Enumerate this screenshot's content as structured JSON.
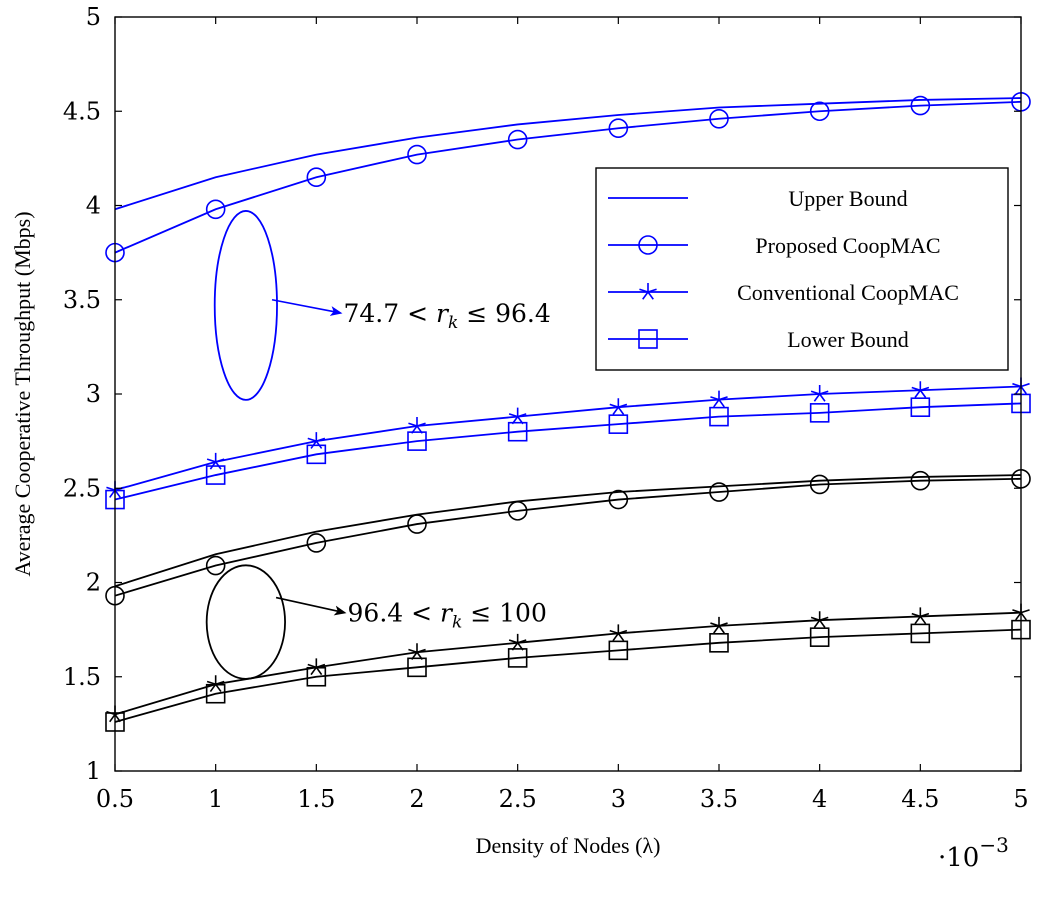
{
  "chart_data": {
    "type": "line",
    "xlabel": "Density of Nodes (λ)",
    "ylabel": "Average Cooperative Throughput (Mbps)",
    "x_multiplier_label": "·10",
    "x_multiplier_exponent": "−3",
    "xlim": [
      0.5,
      5
    ],
    "ylim": [
      1,
      5
    ],
    "x_ticks": [
      0.5,
      1,
      1.5,
      2,
      2.5,
      3,
      3.5,
      4,
      4.5,
      5
    ],
    "x_tick_labels": [
      "0.5",
      "1",
      "1.5",
      "2",
      "2.5",
      "3",
      "3.5",
      "4",
      "4.5",
      "5"
    ],
    "y_ticks": [
      1,
      1.5,
      2,
      2.5,
      3,
      3.5,
      4,
      4.5,
      5
    ],
    "y_tick_labels": [
      "1",
      "1.5",
      "2",
      "2.5",
      "3",
      "3.5",
      "4",
      "4.5",
      "5"
    ],
    "grid": false,
    "legend_position": "top-right",
    "legend": [
      {
        "label": "Upper Bound",
        "marker": "none"
      },
      {
        "label": "Proposed CoopMAC",
        "marker": "circle"
      },
      {
        "label": "Conventional CoopMAC",
        "marker": "star"
      },
      {
        "label": "Lower Bound",
        "marker": "square"
      }
    ],
    "x": [
      0.5,
      1,
      1.5,
      2,
      2.5,
      3,
      3.5,
      4,
      4.5,
      5
    ],
    "series": [
      {
        "group": "blue",
        "color": "#0000ff",
        "marker": "none",
        "values": [
          3.98,
          4.15,
          4.27,
          4.36,
          4.43,
          4.48,
          4.52,
          4.54,
          4.56,
          4.57
        ]
      },
      {
        "group": "blue",
        "color": "#0000ff",
        "marker": "circle",
        "values": [
          3.75,
          3.98,
          4.15,
          4.27,
          4.35,
          4.41,
          4.46,
          4.5,
          4.53,
          4.55
        ]
      },
      {
        "group": "blue",
        "color": "#0000ff",
        "marker": "star",
        "values": [
          2.49,
          2.64,
          2.75,
          2.83,
          2.88,
          2.93,
          2.97,
          3.0,
          3.02,
          3.04
        ]
      },
      {
        "group": "blue",
        "color": "#0000ff",
        "marker": "square",
        "values": [
          2.44,
          2.57,
          2.68,
          2.75,
          2.8,
          2.84,
          2.88,
          2.9,
          2.93,
          2.95
        ]
      },
      {
        "group": "black",
        "color": "#000000",
        "marker": "none",
        "values": [
          1.98,
          2.15,
          2.27,
          2.36,
          2.43,
          2.48,
          2.51,
          2.54,
          2.56,
          2.57
        ]
      },
      {
        "group": "black",
        "color": "#000000",
        "marker": "circle",
        "values": [
          1.93,
          2.09,
          2.21,
          2.31,
          2.38,
          2.44,
          2.48,
          2.52,
          2.54,
          2.55
        ]
      },
      {
        "group": "black",
        "color": "#000000",
        "marker": "star",
        "values": [
          1.3,
          1.46,
          1.55,
          1.63,
          1.68,
          1.73,
          1.77,
          1.8,
          1.82,
          1.84
        ]
      },
      {
        "group": "black",
        "color": "#000000",
        "marker": "square",
        "values": [
          1.26,
          1.41,
          1.5,
          1.55,
          1.6,
          1.64,
          1.68,
          1.71,
          1.73,
          1.75
        ]
      }
    ],
    "annotations": [
      {
        "text_prefix": "74.7 < ",
        "var": "r",
        "sub": "k",
        "text_suffix": " ≤ 96.4",
        "color": "#0000ff",
        "ellipse_center": [
          1.15,
          3.47
        ],
        "ellipse_radius": [
          0.23,
          0.96
        ],
        "arrow_from": [
          1.28,
          3.5
        ],
        "arrow_to": [
          1.62,
          3.43
        ]
      },
      {
        "text_prefix": "96.4 < ",
        "var": "r",
        "sub": "k",
        "text_suffix": " ≤ 100",
        "color": "#000000",
        "ellipse_center": [
          1.15,
          1.79
        ],
        "ellipse_radius": [
          0.31,
          0.56
        ],
        "arrow_from": [
          1.3,
          1.92
        ],
        "arrow_to": [
          1.64,
          1.84
        ]
      }
    ],
    "legend_series_color": "#0000ff"
  }
}
